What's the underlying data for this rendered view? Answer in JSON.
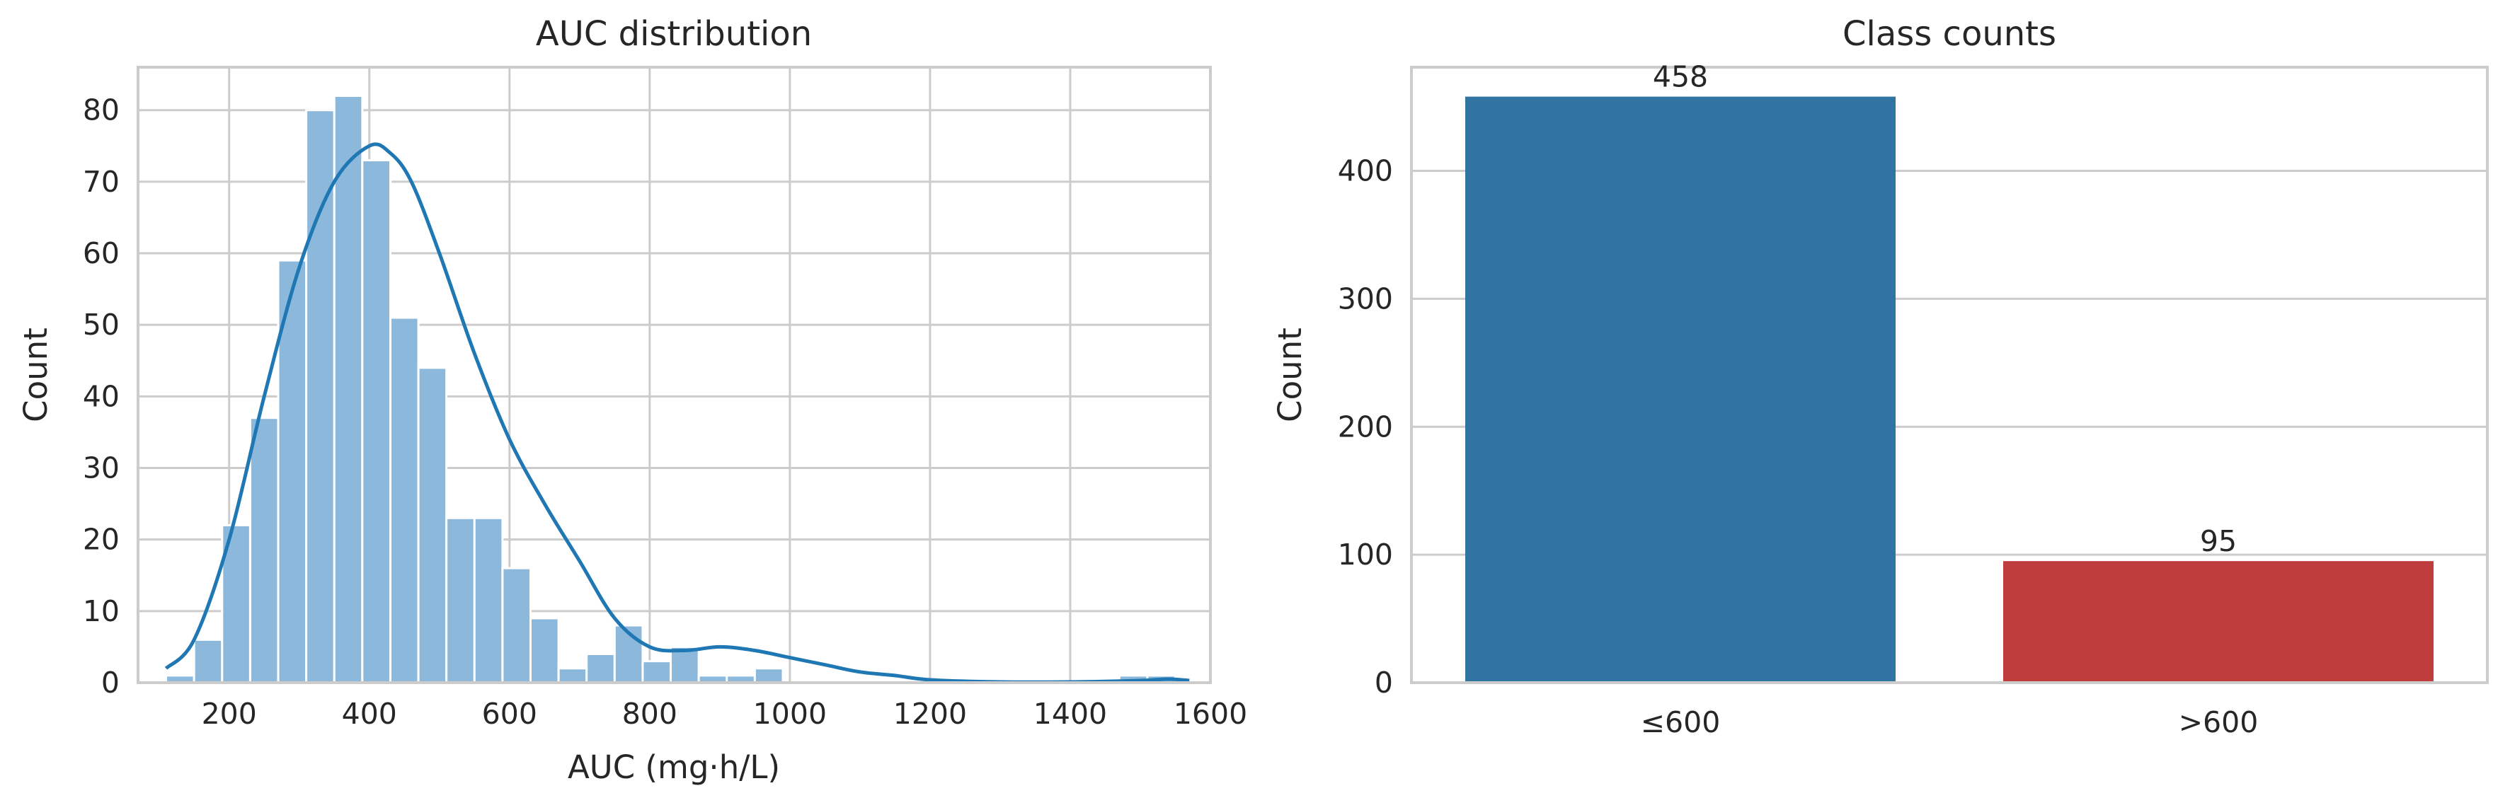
{
  "chart_data": [
    {
      "type": "bar",
      "subtype": "histogram",
      "title": "AUC distribution",
      "xlabel": "AUC (mg·h/L)",
      "ylabel": "Count",
      "xlim": [
        70,
        1600
      ],
      "ylim": [
        0,
        86
      ],
      "xticks": [
        200,
        400,
        600,
        800,
        1000,
        1200,
        1400,
        1600
      ],
      "yticks": [
        0,
        10,
        20,
        30,
        40,
        50,
        60,
        70,
        80
      ],
      "grid": true,
      "bar_color": "#8bb8db",
      "line_color": "#1f77b4",
      "bins": {
        "start": 110,
        "width": 40,
        "counts": [
          1,
          6,
          22,
          37,
          59,
          80,
          82,
          73,
          51,
          44,
          23,
          23,
          16,
          9,
          2,
          4,
          8,
          3,
          5,
          1,
          1,
          2,
          0,
          0,
          0,
          0,
          0,
          0,
          0,
          0,
          0,
          0,
          0,
          0,
          1,
          1
        ]
      },
      "kde": {
        "x": [
          110,
          150,
          200,
          250,
          300,
          350,
          400,
          430,
          460,
          500,
          550,
          600,
          650,
          700,
          750,
          800,
          850,
          900,
          950,
          1000,
          1050,
          1100,
          1150,
          1200,
          1300,
          1400,
          1500,
          1540,
          1570
        ],
        "y": [
          2,
          6,
          20,
          40,
          58,
          70,
          75,
          74,
          70,
          60,
          46,
          34,
          25,
          17,
          9,
          5,
          4.5,
          5,
          4.5,
          3.5,
          2.5,
          1.5,
          1,
          0.4,
          0.1,
          0.1,
          0.3,
          0.5,
          0.3
        ]
      }
    },
    {
      "type": "bar",
      "title": "Class counts",
      "xlabel": "",
      "ylabel": "Count",
      "categories": [
        "≤600",
        ">600"
      ],
      "values": [
        458,
        95
      ],
      "data_labels": [
        "458",
        "95"
      ],
      "ylim": [
        0,
        481
      ],
      "yticks": [
        0,
        100,
        200,
        300,
        400
      ],
      "grid": true,
      "colors": [
        "#3274a1",
        "#c03d3e"
      ]
    }
  ]
}
